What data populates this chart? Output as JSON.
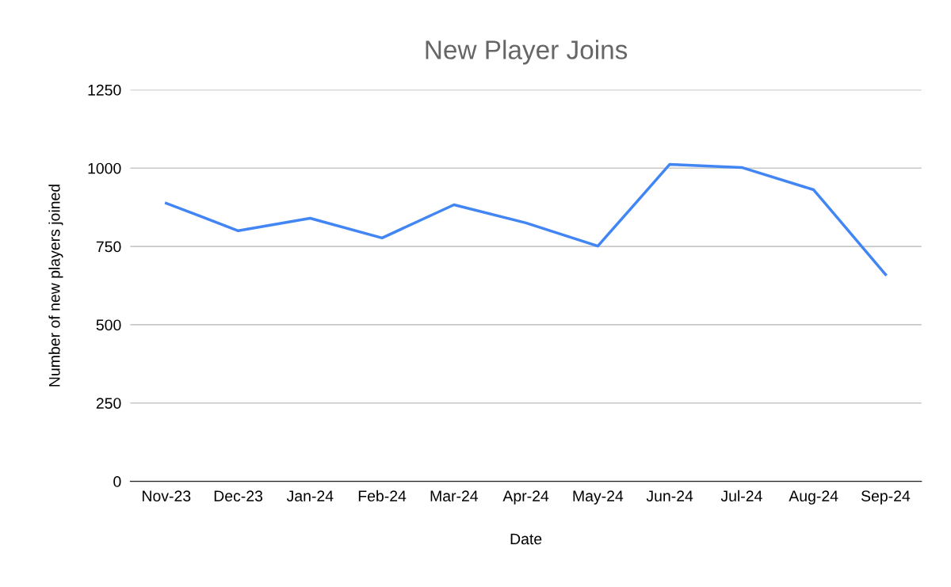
{
  "chart_data": {
    "type": "line",
    "title": "New Player Joins",
    "xlabel": "Date",
    "ylabel": "Number of new players joined",
    "categories": [
      "Nov-23",
      "Dec-23",
      "Jan-24",
      "Feb-24",
      "Mar-24",
      "Apr-24",
      "May-24",
      "Jun-24",
      "Jul-24",
      "Aug-24",
      "Sep-24"
    ],
    "series": [
      {
        "color": "#4285f4",
        "values": [
          888,
          800,
          840,
          777,
          883,
          825,
          751,
          1012,
          1002,
          931,
          660
        ]
      }
    ],
    "ylim": [
      0,
      1250
    ],
    "yticks": [
      0,
      250,
      500,
      750,
      1000,
      1250
    ],
    "grid": "y",
    "legend": false,
    "marker": "none",
    "line_style": "solid"
  }
}
